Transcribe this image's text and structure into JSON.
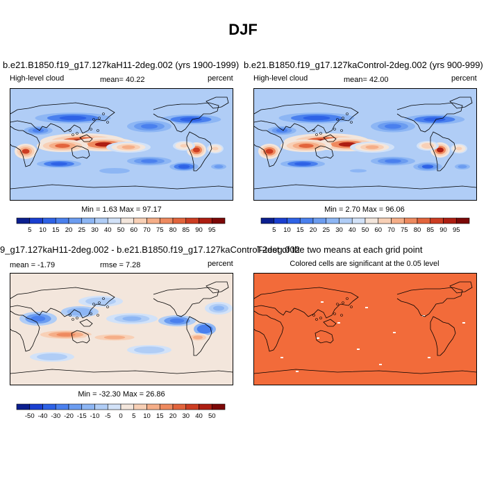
{
  "main_title": "DJF",
  "panels": [
    {
      "title": "b.e21.B1850.f19_g17.127kaH11-2deg.002 (yrs 1900-1999)",
      "left_label": "High-level cloud",
      "center_label": "mean=  40.22",
      "right_label": "percent",
      "minmax": "Min =   1.63 Max =  97.17"
    },
    {
      "title": "b.e21.B1850.f19_g17.127kaControl-2deg.002 (yrs 900-999)",
      "left_label": "High-level cloud",
      "center_label": "mean=  42.00",
      "right_label": "percent",
      "minmax": "Min =   2.70 Max =  96.06"
    },
    {
      "title": "9_g17.127kaH11-2deg.002 - b.e21.B1850.f19_g17.127kaControl-2deg.002",
      "left_label": "mean =  -1.79",
      "center_label": "rmse =   7.28",
      "right_label": "percent",
      "minmax": "Min = -32.30 Max =  26.86"
    },
    {
      "title": "T-test of the two means at each grid point",
      "subtitle": "Colored cells are significant at the 0.05 level"
    }
  ],
  "colorbar_abs": {
    "labels": [
      "5",
      "10",
      "15",
      "20",
      "25",
      "30",
      "40",
      "50",
      "60",
      "70",
      "75",
      "80",
      "85",
      "90",
      "95"
    ],
    "colors": [
      "#0b1f8f",
      "#1a3fd0",
      "#2e62e6",
      "#4a80ee",
      "#6b9cf0",
      "#8db6f4",
      "#b0cdf6",
      "#d2e2f8",
      "#f3e6dc",
      "#f8d0b6",
      "#f5ae88",
      "#ee8a5f",
      "#e2643c",
      "#cc3d22",
      "#ad1e12",
      "#7c0807"
    ]
  },
  "colorbar_diff": {
    "labels": [
      "-50",
      "-40",
      "-30",
      "-20",
      "-15",
      "-10",
      "-5",
      "0",
      "5",
      "10",
      "15",
      "20",
      "30",
      "40",
      "50"
    ],
    "colors": [
      "#0b1f8f",
      "#1a3fd0",
      "#2e62e6",
      "#4a80ee",
      "#6b9cf0",
      "#8db6f4",
      "#b0cdf6",
      "#d2e2f8",
      "#f3e6dc",
      "#f8d0b6",
      "#f5ae88",
      "#ee8a5f",
      "#e2643c",
      "#cc3d22",
      "#ad1e12",
      "#7c0807"
    ]
  },
  "ttest_color": "#f26b3a"
}
